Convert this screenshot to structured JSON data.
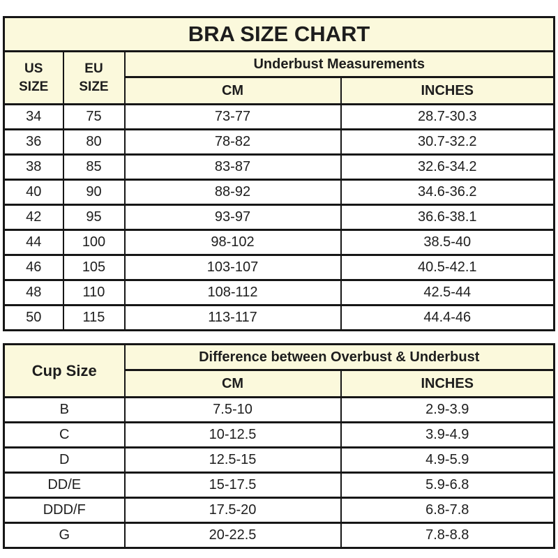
{
  "theme": {
    "page_bg": "#ffffff",
    "header_bg": "#fbf9dc",
    "line_color": "#161616",
    "text_color": "#1d1d1d"
  },
  "chart_data": [
    {
      "type": "table",
      "title": "BRA SIZE CHART",
      "group_header": "Underbust Measurements",
      "columns": [
        "US SIZE",
        "EU SIZE",
        "CM",
        "INCHES"
      ],
      "rows": [
        [
          "34",
          "75",
          "73-77",
          "28.7-30.3"
        ],
        [
          "36",
          "80",
          "78-82",
          "30.7-32.2"
        ],
        [
          "38",
          "85",
          "83-87",
          "32.6-34.2"
        ],
        [
          "40",
          "90",
          "88-92",
          "34.6-36.2"
        ],
        [
          "42",
          "95",
          "93-97",
          "36.6-38.1"
        ],
        [
          "44",
          "100",
          "98-102",
          "38.5-40"
        ],
        [
          "46",
          "105",
          "103-107",
          "40.5-42.1"
        ],
        [
          "48",
          "110",
          "108-112",
          "42.5-44"
        ],
        [
          "50",
          "115",
          "113-117",
          "44.4-46"
        ]
      ]
    },
    {
      "type": "table",
      "title": "",
      "group_header": "Difference between Overbust & Underbust",
      "columns": [
        "Cup Size",
        "CM",
        "INCHES"
      ],
      "rows": [
        [
          "B",
          "7.5-10",
          "2.9-3.9"
        ],
        [
          "C",
          "10-12.5",
          "3.9-4.9"
        ],
        [
          "D",
          "12.5-15",
          "4.9-5.9"
        ],
        [
          "DD/E",
          "15-17.5",
          "5.9-6.8"
        ],
        [
          "DDD/F",
          "17.5-20",
          "6.8-7.8"
        ],
        [
          "G",
          "20-22.5",
          "7.8-8.8"
        ]
      ]
    }
  ]
}
